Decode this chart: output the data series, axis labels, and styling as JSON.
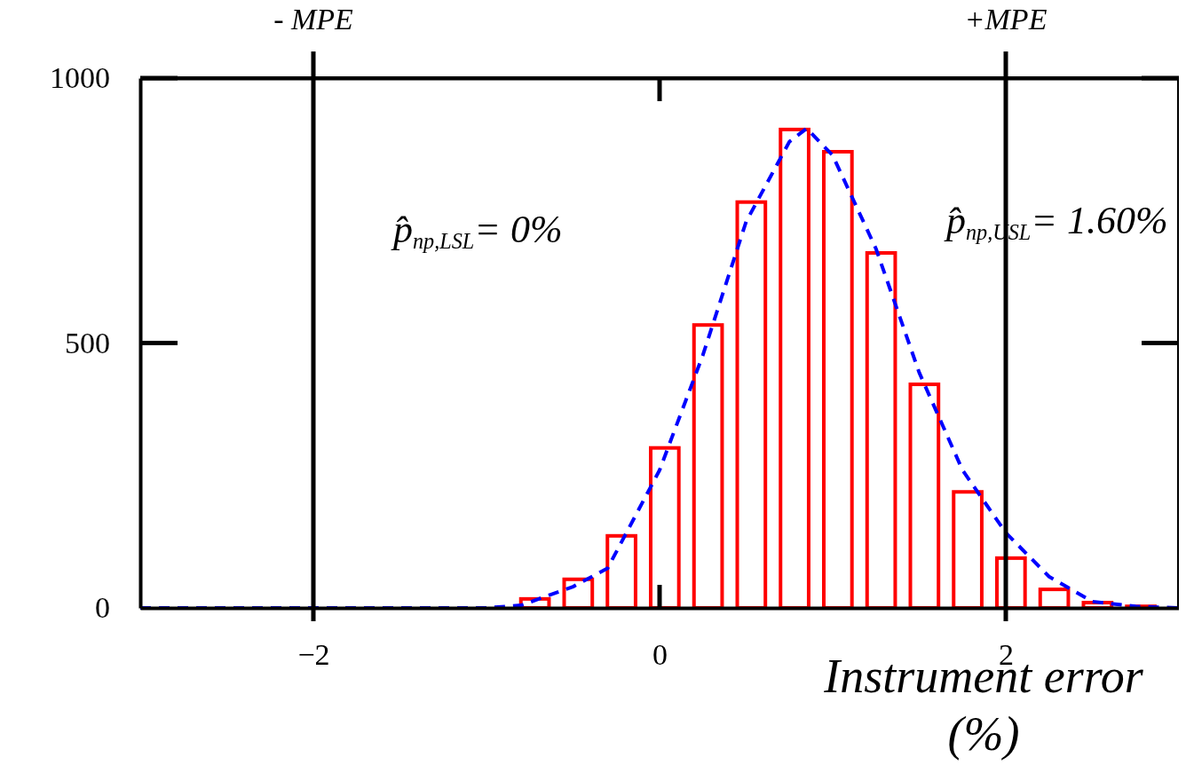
{
  "chart_data": {
    "type": "bar",
    "xlabel": "Instrument error (%)",
    "x": [
      -0.72,
      -0.47,
      -0.22,
      0.03,
      0.28,
      0.53,
      0.78,
      1.03,
      1.28,
      1.53,
      1.78,
      2.03,
      2.28,
      2.53,
      2.78
    ],
    "values": [
      17,
      54,
      136,
      302,
      534,
      766,
      903,
      861,
      670,
      422,
      219,
      94,
      35,
      10,
      3
    ],
    "color": "#ff0000",
    "series": [
      {
        "type": "line",
        "color": "#0000ff",
        "line_style": "dashed",
        "x": [
          -3,
          -1,
          -0.8,
          -0.5,
          -0.3,
          0,
          0.25,
          0.5,
          0.75,
          0.85,
          1,
          1.25,
          1.5,
          1.75,
          2,
          2.25,
          2.5,
          2.75,
          3
        ],
        "values": [
          0,
          0,
          5,
          40,
          75,
          260,
          477,
          729,
          880,
          905,
          854,
          678,
          444,
          260,
          142,
          59,
          12,
          3,
          0
        ]
      }
    ],
    "xlim": [
      -3,
      3
    ],
    "xticks": [
      -2,
      0,
      2
    ],
    "ylim": [
      0,
      1000
    ],
    "yticks": [
      0,
      500,
      1000
    ],
    "ref_lines": [
      {
        "axis": "x",
        "value": -2,
        "label": "- MPE",
        "color": "#000000"
      },
      {
        "axis": "x",
        "value": 2,
        "label": "+MPE",
        "color": "#000000"
      }
    ],
    "annotations": [
      "p̂$_{np,LSL}$= 0%",
      "p̂$_{np,USL}$= 1.60%"
    ]
  }
}
